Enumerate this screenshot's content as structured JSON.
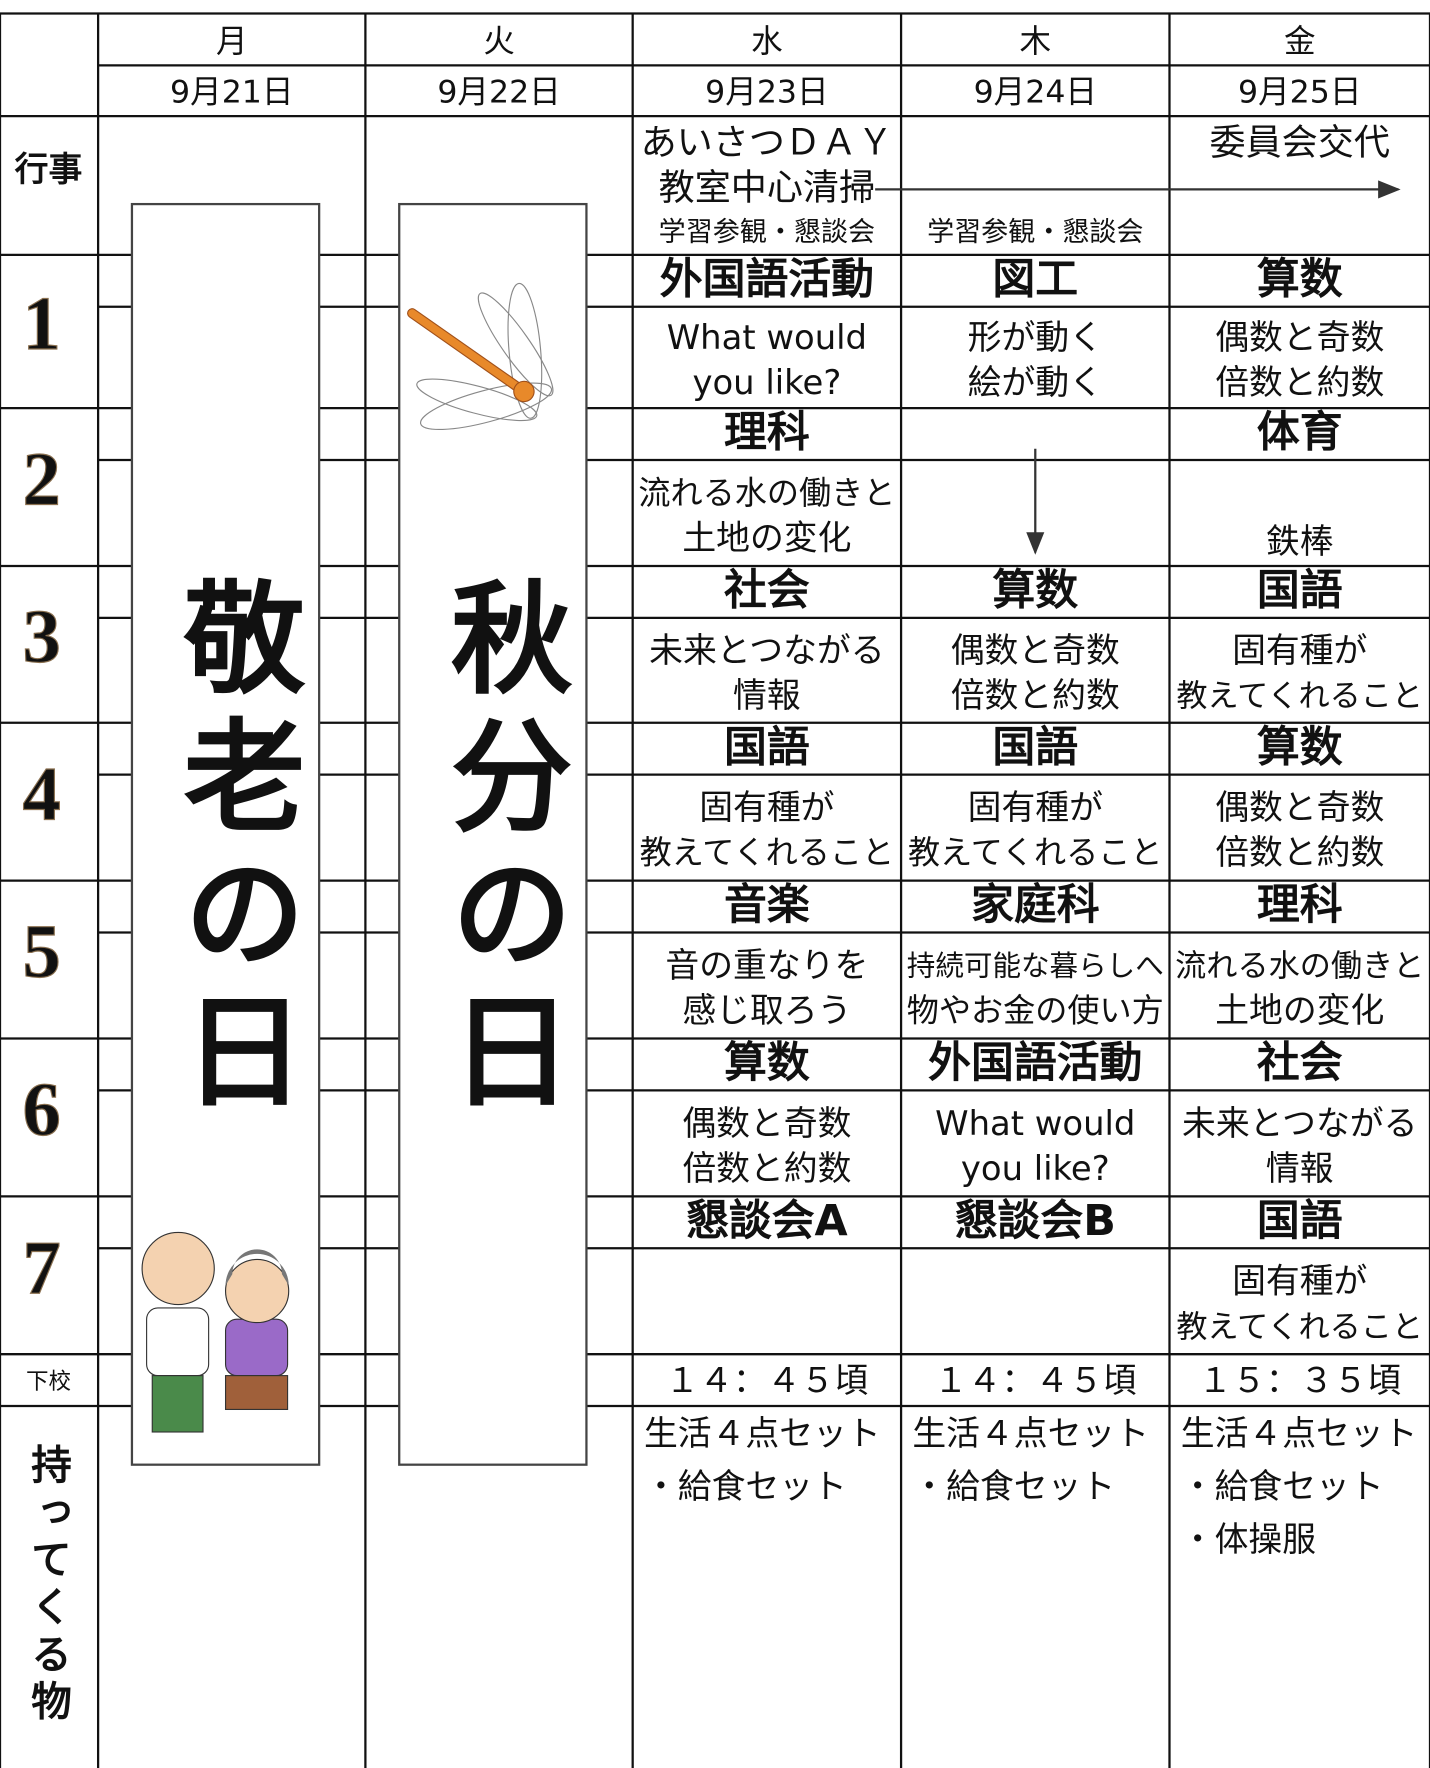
{
  "labels": {
    "events": "行事",
    "dismissal": "下校",
    "items": "持ってくる物"
  },
  "period_labels": [
    "1",
    "2",
    "3",
    "4",
    "5",
    "6",
    "7"
  ],
  "days": [
    {
      "name": "月",
      "date": "9月21日",
      "holiday": "敬老の日"
    },
    {
      "name": "火",
      "date": "9月22日",
      "holiday": "秋分の日"
    },
    {
      "name": "水",
      "date": "9月23日",
      "events": [
        "あいさつＤＡＹ",
        "教室中心清掃",
        "学習参観・懇談会"
      ],
      "periods": [
        {
          "subject": "外国語活動",
          "lines": [
            "What would",
            "you like?"
          ]
        },
        {
          "subject": "理科",
          "lines": [
            "流れる水の働きと",
            "土地の変化"
          ]
        },
        {
          "subject": "社会",
          "lines": [
            "未来とつながる",
            "情報"
          ]
        },
        {
          "subject": "国語",
          "lines": [
            "固有種が",
            "教えてくれること"
          ]
        },
        {
          "subject": "音楽",
          "lines": [
            "音の重なりを",
            "感じ取ろう"
          ]
        },
        {
          "subject": "算数",
          "lines": [
            "偶数と奇数",
            "倍数と約数"
          ]
        },
        {
          "subject": "懇談会A"
        }
      ],
      "dismissal": "１４：４５頃",
      "items": [
        "生活４点セット",
        "・給食セット"
      ]
    },
    {
      "name": "木",
      "date": "9月24日",
      "events": [
        null,
        null,
        "学習参観・懇談会"
      ],
      "periods": [
        {
          "subject": "図工",
          "lines": [
            "形が動く",
            "絵が動く"
          ]
        },
        null,
        {
          "subject": "算数",
          "lines": [
            "偶数と奇数",
            "倍数と約数"
          ]
        },
        {
          "subject": "国語",
          "lines": [
            "固有種が",
            "教えてくれること"
          ]
        },
        {
          "subject": "家庭科",
          "lines": [
            "持続可能な暮らしへ",
            "物やお金の使い方"
          ]
        },
        {
          "subject": "外国語活動",
          "lines": [
            "What would",
            "you like?"
          ]
        },
        {
          "subject": "懇談会B"
        }
      ],
      "dismissal": "１４：４５頃",
      "items": [
        "生活４点セット",
        "・給食セット"
      ]
    },
    {
      "name": "金",
      "date": "9月25日",
      "events": [
        "委員会交代"
      ],
      "periods": [
        {
          "subject": "算数",
          "lines": [
            "偶数と奇数",
            "倍数と約数"
          ]
        },
        {
          "subject": "体育",
          "lines": [
            "鉄棒"
          ]
        },
        {
          "subject": "国語",
          "lines": [
            "固有種が",
            "教えてくれること"
          ]
        },
        {
          "subject": "算数",
          "lines": [
            "偶数と奇数",
            "倍数と約数"
          ]
        },
        {
          "subject": "理科",
          "lines": [
            "流れる水の働きと",
            "土地の変化"
          ]
        },
        {
          "subject": "社会",
          "lines": [
            "未来とつながる",
            "情報"
          ]
        },
        {
          "subject": "国語",
          "lines": [
            "固有種が",
            "教えてくれること"
          ]
        }
      ],
      "dismissal": "１５：３５頃",
      "items": [
        "生活４点セット",
        "・給食セット",
        "・体操服"
      ]
    }
  ]
}
